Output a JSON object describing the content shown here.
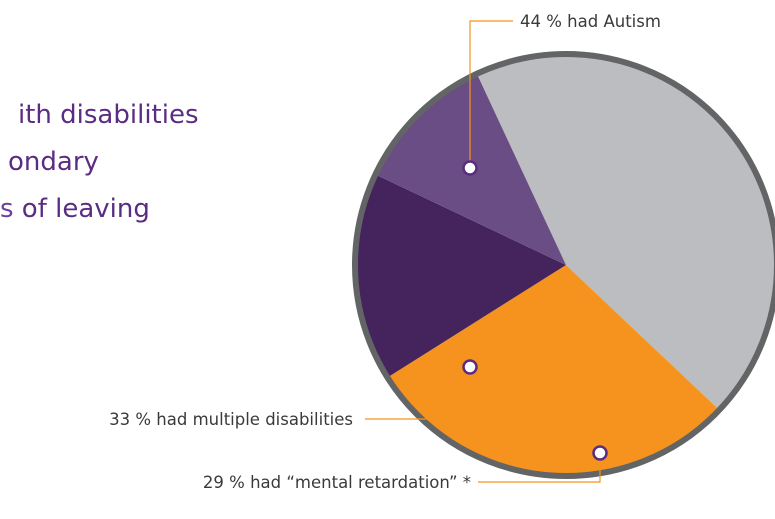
{
  "intro_text": {
    "line1": "ith disabilities",
    "line2": "ondary",
    "line3_accent": "s",
    "line3_rest": " of leaving"
  },
  "colors": {
    "intro_text": "#5b2d82",
    "slice_gray": "#bcbdc0",
    "slice_orange": "#f5931e",
    "slice_dark_purple": "#45235c",
    "slice_mid_purple": "#6b4d86",
    "rim": "#636466",
    "leader_line": "#f5931e",
    "marker": "#5b2d82"
  },
  "chart_data": {
    "type": "pie",
    "title": "",
    "slices": [
      {
        "label": "44 % had Autism",
        "value": 44,
        "color": "#bcbdc0"
      },
      {
        "label": "",
        "value": 29,
        "color": "#f5931e"
      },
      {
        "label": "",
        "value": 16,
        "color": "#45235c"
      },
      {
        "label": "",
        "value": 11,
        "color": "#6b4d86"
      }
    ],
    "annotations": [
      {
        "text": "44 % had Autism"
      },
      {
        "text": "33 % had multiple disabilities"
      },
      {
        "text": "29 % had “mental retardation” *"
      }
    ]
  }
}
